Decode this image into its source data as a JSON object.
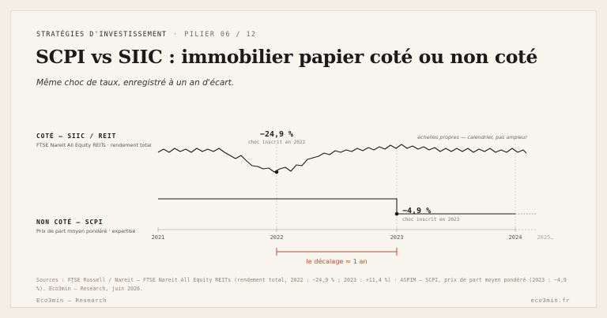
{
  "header": {
    "kicker": "STRATÉGIES D'INVESTISSEMENT",
    "kicker_sep": "·",
    "pilier": "PILIER 06 / 12",
    "title": "SCPI vs SIIC : immobilier papier coté ou non coté",
    "subtitle": "Même choc de taux, enregistré à un an d'écart."
  },
  "chart_data": {
    "type": "line",
    "note": "échelles propres — calendrier, pas ampleur",
    "x_ticks": [
      "2021",
      "2022",
      "2023",
      "2024",
      "2025…"
    ],
    "xlim": [
      2021,
      2025
    ],
    "series": [
      {
        "name": "COTÉ — SIIC / REIT",
        "sublabel": "FTSE Nareit All Equity REITs · rendement total",
        "color": "#1c1c1c",
        "annotation": {
          "label": "−24,9 %",
          "sublabel": "choc inscrit en 2022",
          "x": 2022.0
        }
      },
      {
        "name": "NON COTÉ — SCPI",
        "sublabel": "Prix de part moyen pondéré · expertise",
        "color": "#1c1c1c",
        "annotation": {
          "label": "−4,9 %",
          "sublabel": "choc inscrit en 2023",
          "x": 2023.0
        }
      }
    ],
    "lag": {
      "label": "le décalage ≈ 1 an",
      "from": 2022,
      "to": 2023,
      "color": "#b8502e"
    }
  },
  "footer": {
    "sources": "Sources : FTSE Russell / Nareit — FTSE Nareit All Equity REITs (rendement total, 2022 : −24,9 % ; 2023 : +11,4 %) · ASPIM — SCPI, prix de part moyen pondéré (2023 : −4,9 %). Eco3min — Research, juin 2026.",
    "brand": "Eco3min — Research",
    "site": "eco3min.fr"
  },
  "colors": {
    "accent": "#b8502e",
    "ink": "#1c1c1c",
    "muted": "#8a8578",
    "grid": "#d9d3c6"
  }
}
